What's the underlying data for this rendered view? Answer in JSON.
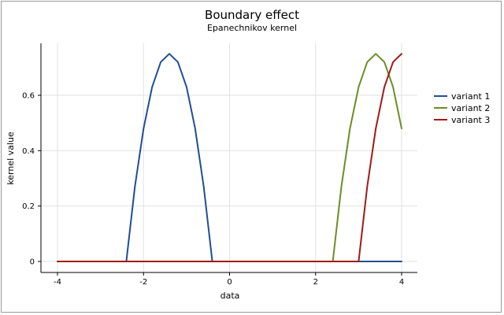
{
  "chart_data": {
    "type": "line",
    "title": "Boundary effect",
    "subtitle": "Epanechnikov kernel",
    "xlabel": "data",
    "ylabel": "kernel value",
    "xlim": [
      -4,
      4
    ],
    "ylim": [
      0,
      0.75
    ],
    "xticks": [
      -4,
      -2,
      0,
      2,
      4
    ],
    "yticks": [
      0,
      0.2,
      0.4,
      0.6
    ],
    "ytick_labels": [
      "0",
      "0.2",
      "0.4",
      "0.6"
    ],
    "grid": true,
    "legend_position": "right",
    "series": [
      {
        "name": "variant 1",
        "color": "#1f4e96",
        "x": [
          -4.0,
          -2.4,
          -2.2,
          -2.0,
          -1.8,
          -1.6,
          -1.4,
          -1.2,
          -1.0,
          -0.8,
          -0.6,
          -0.4,
          0.0,
          2.0,
          4.0
        ],
        "y": [
          0,
          0,
          0.27,
          0.48,
          0.63,
          0.72,
          0.75,
          0.72,
          0.63,
          0.48,
          0.27,
          0,
          0,
          0,
          0
        ]
      },
      {
        "name": "variant 2",
        "color": "#6b8e23",
        "x": [
          -4.0,
          0.0,
          2.4,
          2.6,
          2.8,
          3.0,
          3.2,
          3.4,
          3.6,
          3.8,
          4.0
        ],
        "y": [
          0,
          0,
          0,
          0.27,
          0.48,
          0.63,
          0.72,
          0.75,
          0.72,
          0.63,
          0.48
        ]
      },
      {
        "name": "variant 3",
        "color": "#a01a1a",
        "x": [
          -4.0,
          0.0,
          3.0,
          3.2,
          3.4,
          3.6,
          3.8,
          4.0
        ],
        "y": [
          0,
          0,
          0,
          0.27,
          0.48,
          0.63,
          0.72,
          0.75
        ]
      }
    ]
  }
}
